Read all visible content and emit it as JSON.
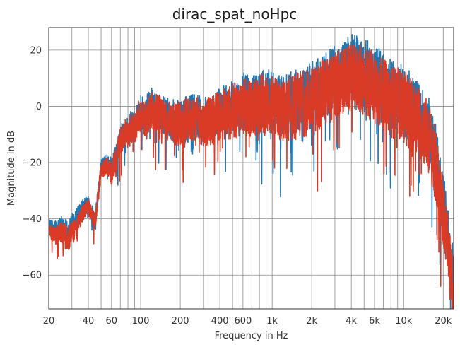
{
  "chart_data": {
    "type": "line",
    "title": "dirac_spat_noHpc",
    "xlabel": "Frequency in Hz",
    "ylabel": "Magnitude in dB",
    "xscale": "log",
    "xlim": [
      20,
      24000
    ],
    "ylim": [
      -72,
      28
    ],
    "grid": true,
    "grid_color": "#8c8c8c",
    "x_ticks": [
      {
        "value": 20,
        "label": "20"
      },
      {
        "value": 40,
        "label": "40"
      },
      {
        "value": 60,
        "label": "60"
      },
      {
        "value": 100,
        "label": "100"
      },
      {
        "value": 200,
        "label": "200"
      },
      {
        "value": 400,
        "label": "400"
      },
      {
        "value": 600,
        "label": "600"
      },
      {
        "value": 1000,
        "label": "1k"
      },
      {
        "value": 2000,
        "label": "2k"
      },
      {
        "value": 4000,
        "label": "4k"
      },
      {
        "value": 6000,
        "label": "6k"
      },
      {
        "value": 10000,
        "label": "10k"
      },
      {
        "value": 20000,
        "label": "20k"
      }
    ],
    "x_minor_ticks": [
      30,
      50,
      70,
      80,
      90,
      300,
      500,
      700,
      800,
      900,
      3000,
      5000,
      7000,
      8000,
      9000
    ],
    "y_ticks": [
      {
        "value": 20,
        "label": "20"
      },
      {
        "value": 0,
        "label": "0"
      },
      {
        "value": -20,
        "label": "−20"
      },
      {
        "value": -40,
        "label": "−40"
      },
      {
        "value": -60,
        "label": "−60"
      }
    ],
    "series": [
      {
        "color": "#1f77b4",
        "x": [
          20,
          22,
          25,
          28,
          30,
          33,
          36,
          40,
          45,
          50,
          55,
          60,
          65,
          70,
          75,
          80,
          85,
          90,
          95,
          100,
          110,
          120,
          140,
          160,
          180,
          200,
          250,
          300,
          350,
          400,
          500,
          600,
          700,
          800,
          1000,
          1200,
          1500,
          2000,
          2500,
          3000,
          3500,
          4000,
          4500,
          5000,
          6000,
          7000,
          8000,
          10000,
          12000,
          14000,
          16000,
          18000,
          20000,
          22000,
          24000
        ],
        "values": [
          -42,
          -44,
          -43,
          -44,
          -42,
          -40,
          -36,
          -35,
          -40,
          -22,
          -20,
          -22,
          -18,
          -12,
          -8,
          -9,
          -7,
          -8,
          -3,
          -2,
          -3,
          0,
          -2,
          -4,
          -5,
          -5,
          -3,
          -5,
          -4,
          -2,
          0,
          2,
          1,
          3,
          2,
          0,
          2,
          4,
          7,
          10,
          12,
          14,
          13,
          12,
          10,
          6,
          4,
          2,
          -2,
          -5,
          -10,
          -22,
          -35,
          -48,
          -62
        ],
        "spread": [
          2,
          3,
          4,
          4,
          4,
          4,
          3,
          3,
          3,
          3,
          3,
          4,
          5,
          5,
          5,
          5,
          6,
          6,
          6,
          6,
          7,
          7,
          7,
          7,
          8,
          8,
          8,
          8,
          8,
          9,
          9,
          10,
          10,
          10,
          11,
          11,
          11,
          12,
          12,
          12,
          12,
          12,
          12,
          13,
          13,
          13,
          13,
          13,
          13,
          13,
          13,
          13,
          12,
          11,
          10
        ]
      },
      {
        "color": "#d93b26",
        "x": [
          20,
          22,
          25,
          28,
          30,
          33,
          36,
          40,
          45,
          50,
          55,
          60,
          65,
          70,
          75,
          80,
          85,
          90,
          95,
          100,
          110,
          120,
          140,
          160,
          180,
          200,
          250,
          300,
          350,
          400,
          500,
          600,
          700,
          800,
          1000,
          1200,
          1500,
          2000,
          2500,
          3000,
          3500,
          4000,
          4500,
          5000,
          6000,
          7000,
          8000,
          10000,
          12000,
          14000,
          16000,
          18000,
          20000,
          22000,
          24000
        ],
        "values": [
          -44,
          -46,
          -45,
          -47,
          -45,
          -43,
          -38,
          -36,
          -41,
          -23,
          -21,
          -24,
          -19,
          -13,
          -9,
          -10,
          -8,
          -9,
          -4,
          -3,
          -4,
          -1,
          -3,
          -5,
          -6,
          -6,
          -4,
          -6,
          -5,
          -3,
          -2,
          0,
          -1,
          1,
          0,
          -2,
          0,
          2,
          5,
          7,
          9,
          10,
          10,
          9,
          7,
          4,
          2,
          0,
          -4,
          -7,
          -13,
          -25,
          -38,
          -52,
          -66
        ],
        "spread": [
          2,
          3,
          4,
          5,
          4,
          4,
          3,
          3,
          3,
          3,
          3,
          4,
          5,
          5,
          5,
          5,
          6,
          6,
          6,
          6,
          7,
          7,
          7,
          7,
          8,
          8,
          8,
          8,
          9,
          9,
          10,
          10,
          10,
          11,
          11,
          11,
          12,
          12,
          12,
          12,
          12,
          12,
          12,
          13,
          13,
          13,
          13,
          13,
          13,
          13,
          13,
          13,
          12,
          11,
          10
        ]
      }
    ]
  }
}
